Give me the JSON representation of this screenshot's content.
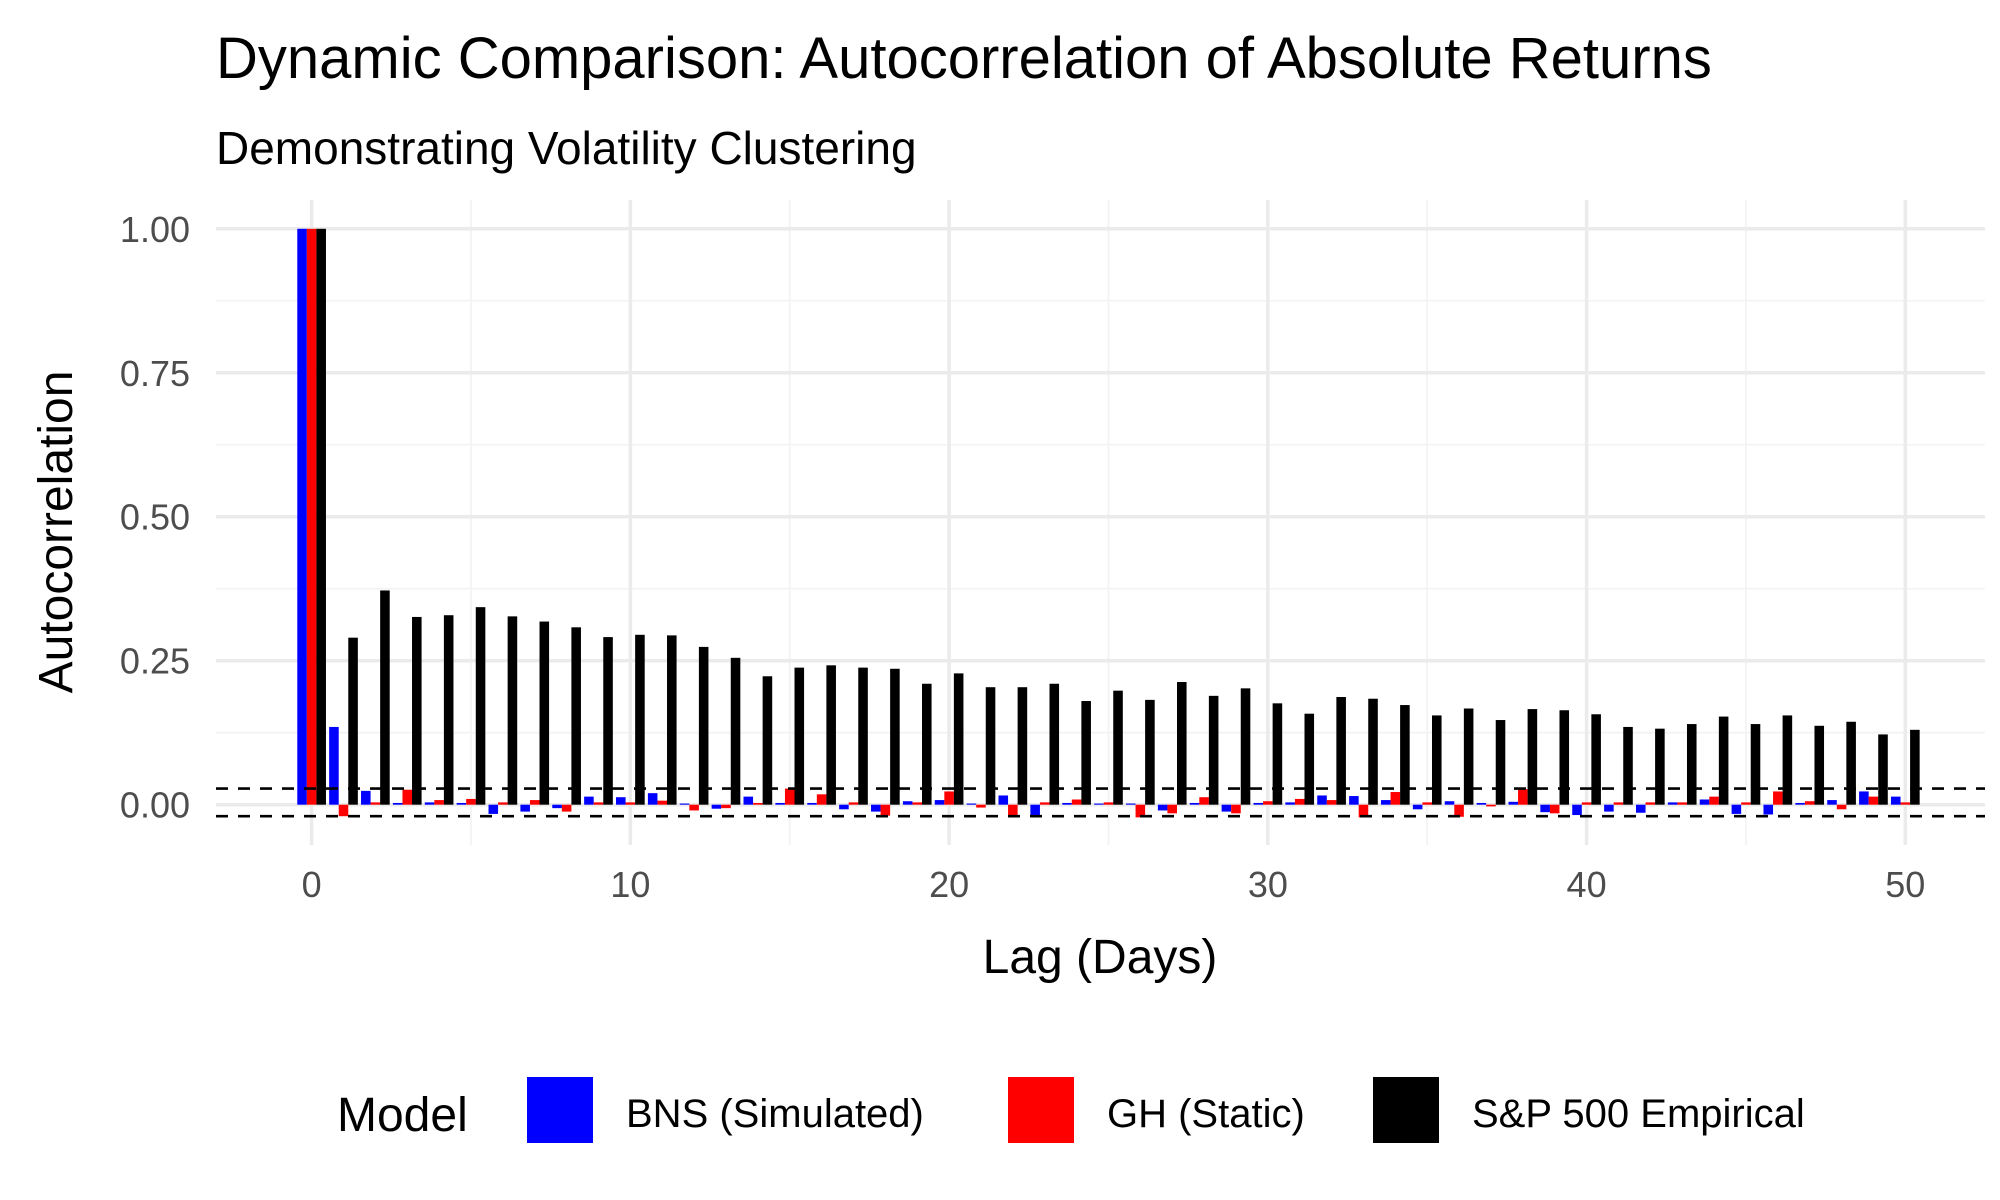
{
  "chart_data": {
    "type": "bar",
    "title": "Dynamic Comparison: Autocorrelation of Absolute Returns",
    "subtitle": "Demonstrating Volatility Clustering",
    "xlabel": "Lag (Days)",
    "ylabel": "Autocorrelation",
    "x": [
      0,
      1,
      2,
      3,
      4,
      5,
      6,
      7,
      8,
      9,
      10,
      11,
      12,
      13,
      14,
      15,
      16,
      17,
      18,
      19,
      20,
      21,
      22,
      23,
      24,
      25,
      26,
      27,
      28,
      29,
      30,
      31,
      32,
      33,
      34,
      35,
      36,
      37,
      38,
      39,
      40,
      41,
      42,
      43,
      44,
      45,
      46,
      47,
      48,
      49,
      50
    ],
    "xlim": [
      -3,
      52.5
    ],
    "ylim": [
      -0.07,
      1.05
    ],
    "x_ticks": [
      0,
      10,
      20,
      30,
      40,
      50
    ],
    "x_tick_labels": [
      "0",
      "10",
      "20",
      "30",
      "40",
      "50"
    ],
    "y_ticks": [
      0.0,
      0.25,
      0.5,
      0.75,
      1.0
    ],
    "y_tick_labels": [
      "0.00",
      "0.25",
      "0.50",
      "0.75",
      "1.00"
    ],
    "grid": true,
    "confidence_band": [
      -0.02,
      0.028
    ],
    "series": [
      {
        "name": "BNS (Simulated)",
        "color": "#0000ff",
        "values": [
          1.0,
          0.135,
          0.024,
          0.003,
          0.004,
          0.003,
          -0.016,
          -0.012,
          -0.006,
          0.014,
          0.013,
          0.02,
          0.002,
          -0.007,
          0.014,
          0.003,
          0.003,
          -0.008,
          -0.012,
          0.006,
          0.008,
          0.002,
          0.016,
          -0.018,
          0.003,
          0.002,
          0.002,
          -0.01,
          0.003,
          -0.012,
          0.003,
          0.004,
          0.016,
          0.015,
          0.008,
          -0.008,
          0.006,
          0.003,
          0.005,
          -0.013,
          -0.018,
          -0.012,
          -0.014,
          0.004,
          0.009,
          -0.016,
          -0.017,
          0.003,
          0.008,
          0.023,
          0.014
        ]
      },
      {
        "name": "GH (Static)",
        "color": "#ff0000",
        "values": [
          1.0,
          -0.02,
          0.004,
          0.026,
          0.008,
          0.01,
          0.004,
          0.008,
          -0.012,
          0.004,
          0.004,
          0.007,
          -0.01,
          -0.006,
          0.003,
          0.028,
          0.018,
          0.004,
          -0.019,
          0.004,
          0.023,
          -0.005,
          -0.018,
          0.004,
          0.009,
          0.004,
          -0.022,
          -0.015,
          0.013,
          -0.015,
          0.006,
          0.01,
          0.008,
          -0.022,
          0.022,
          0.004,
          -0.021,
          -0.003,
          0.027,
          -0.015,
          0.004,
          0.004,
          0.004,
          0.004,
          0.014,
          0.004,
          0.023,
          0.006,
          -0.008,
          0.014,
          0.004
        ]
      },
      {
        "name": "S&P 500 Empirical",
        "color": "#000000",
        "values": [
          1.0,
          0.29,
          0.372,
          0.326,
          0.329,
          0.343,
          0.327,
          0.318,
          0.308,
          0.291,
          0.295,
          0.294,
          0.274,
          0.255,
          0.223,
          0.238,
          0.242,
          0.238,
          0.236,
          0.21,
          0.228,
          0.204,
          0.204,
          0.21,
          0.18,
          0.198,
          0.182,
          0.213,
          0.189,
          0.202,
          0.176,
          0.158,
          0.187,
          0.184,
          0.173,
          0.155,
          0.167,
          0.147,
          0.166,
          0.164,
          0.157,
          0.135,
          0.132,
          0.14,
          0.153,
          0.14,
          0.155,
          0.137,
          0.144,
          0.122,
          0.13
        ]
      }
    ],
    "legend": {
      "title": "Model",
      "position": "bottom",
      "entries": [
        "BNS (Simulated)",
        "GH (Static)",
        "S&P 500 Empirical"
      ]
    }
  }
}
